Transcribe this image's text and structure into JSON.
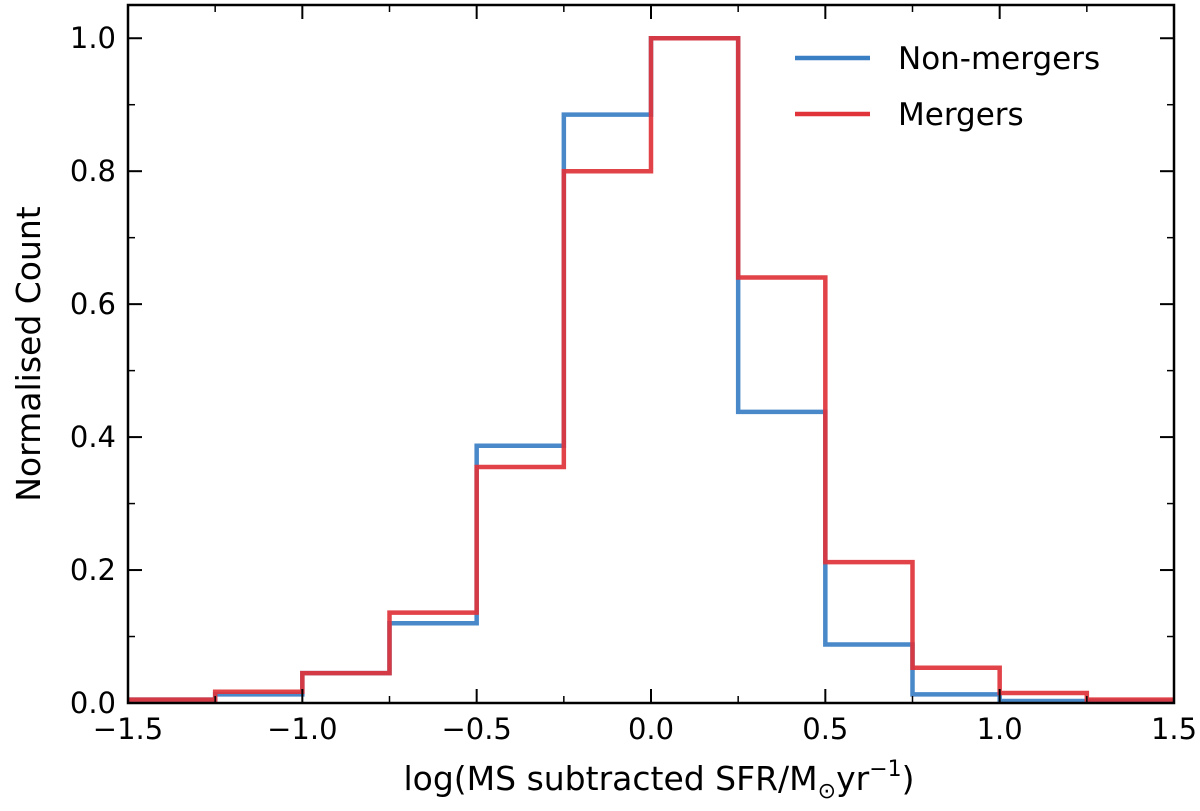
{
  "chart_data": {
    "type": "histogram-step",
    "title": "",
    "xlabel": "log(MS subtracted SFR/M",
    "xlabel_sub": "⊙",
    "xlabel_tail": "yr",
    "xlabel_sup": "−1",
    "xlabel_close": ")",
    "ylabel": "Normalised Count",
    "xlim": [
      -1.5,
      1.5
    ],
    "ylim": [
      0.0,
      1.05
    ],
    "xticks": [
      -1.5,
      -1.0,
      -0.5,
      0.0,
      0.5,
      1.0,
      1.5
    ],
    "xtick_labels": [
      "−1.5",
      "−1.0",
      "−0.5",
      "0.0",
      "0.5",
      "1.0",
      "1.5"
    ],
    "yticks": [
      0.0,
      0.2,
      0.4,
      0.6,
      0.8,
      1.0
    ],
    "ytick_labels": [
      "0.0",
      "0.2",
      "0.4",
      "0.6",
      "0.8",
      "1.0"
    ],
    "minor_xticks": [
      -1.25,
      -0.75,
      -0.25,
      0.25,
      0.75,
      1.25
    ],
    "bin_edges": [
      -1.5,
      -1.25,
      -1.0,
      -0.75,
      -0.5,
      -0.25,
      0.0,
      0.25,
      0.5,
      0.75,
      1.0,
      1.25,
      1.5
    ],
    "series": [
      {
        "name": "Non-mergers",
        "color": "#3a7fc4",
        "values": [
          0.005,
          0.013,
          0.045,
          0.12,
          0.387,
          0.885,
          1.0,
          0.438,
          0.088,
          0.013,
          0.003,
          0.003
        ]
      },
      {
        "name": "Mergers",
        "color": "#e0333a",
        "values": [
          0.005,
          0.017,
          0.045,
          0.136,
          0.355,
          0.8,
          1.0,
          0.64,
          0.212,
          0.053,
          0.015,
          0.005
        ]
      }
    ],
    "legend_position": "top-right",
    "grid": false
  }
}
